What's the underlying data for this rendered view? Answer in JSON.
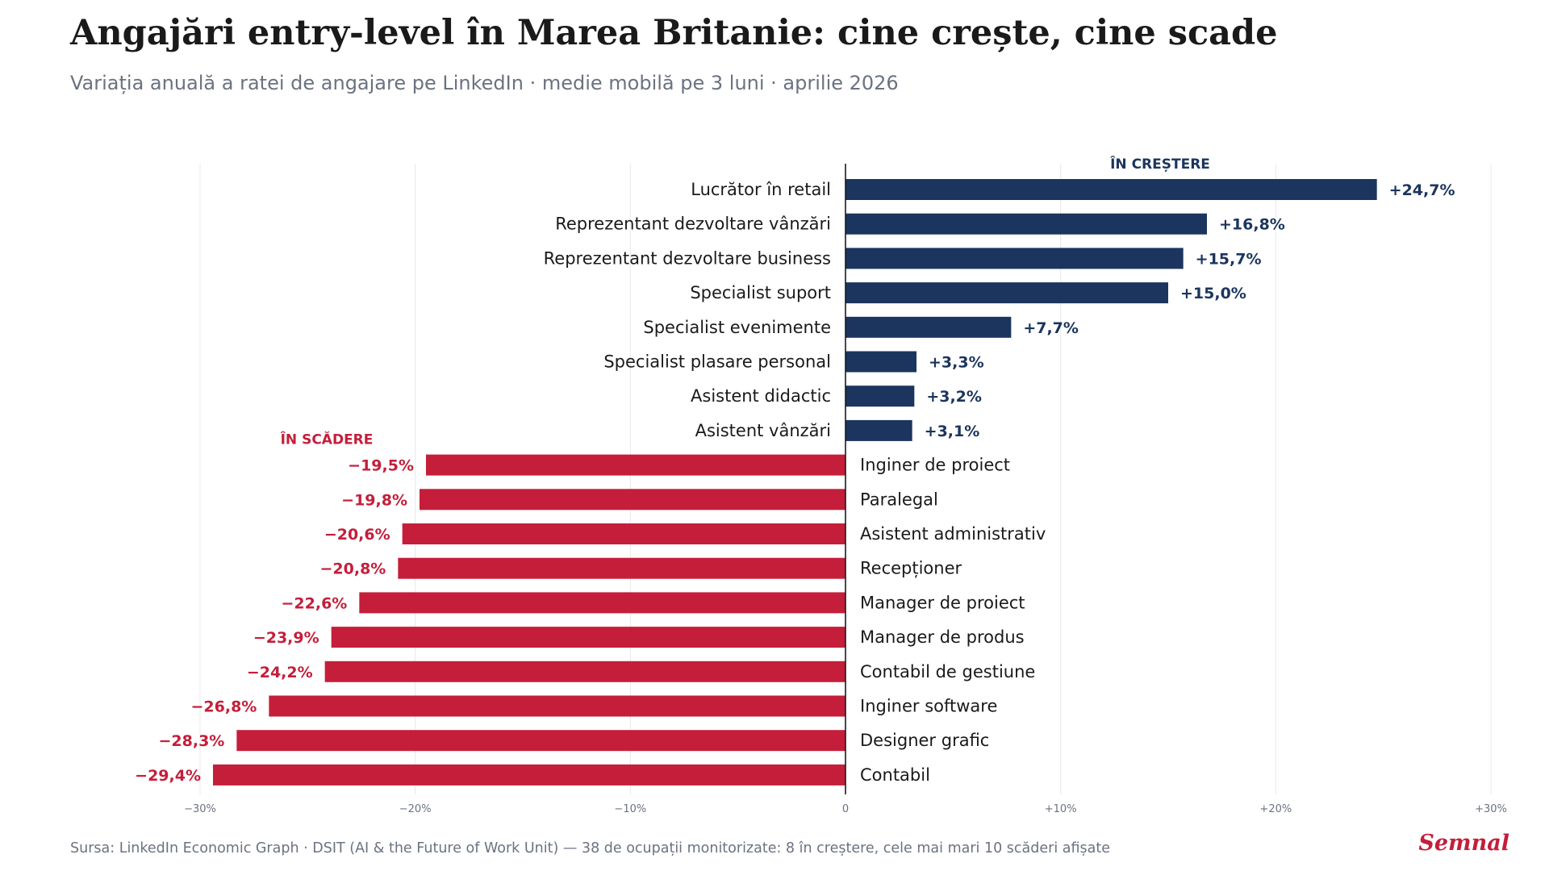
{
  "title": "Angajări entry-level în Marea Britanie: cine crește, cine scade",
  "subtitle": "Variația anuală a ratei de angajare pe LinkedIn · medie mobilă pe 3 luni · aprilie 2026",
  "source": "Sursa: LinkedIn Economic Graph · DSIT (AI & the Future of Work Unit) — 38 de ocupații monitorizate: 8 în creștere, cele mai mari 10 scăderi afișate",
  "brand": "Semnal",
  "colors": {
    "positive": "#1b355e",
    "negative": "#c41e3a"
  },
  "chart_data": {
    "type": "bar",
    "orientation": "horizontal",
    "group_labels": {
      "positive": "ÎN CREȘTERE",
      "negative": "ÎN SCĂDERE"
    },
    "categories": [
      "Lucrător în retail",
      "Reprezentant dezvoltare vânzări",
      "Reprezentant dezvoltare business",
      "Specialist suport",
      "Specialist evenimente",
      "Specialist plasare personal",
      "Asistent didactic",
      "Asistent vânzări",
      "Inginer de proiect",
      "Paralegal",
      "Asistent administrativ",
      "Recepționer",
      "Manager de proiect",
      "Manager de produs",
      "Contabil de gestiune",
      "Inginer software",
      "Designer grafic",
      "Contabil"
    ],
    "values": [
      24.7,
      16.8,
      15.7,
      15.0,
      7.7,
      3.3,
      3.2,
      3.1,
      -19.5,
      -19.8,
      -20.6,
      -20.8,
      -22.6,
      -23.9,
      -24.2,
      -26.8,
      -28.3,
      -29.4
    ],
    "value_labels": [
      "+24,7%",
      "+16,8%",
      "+15,7%",
      "+15,0%",
      "+7,7%",
      "+3,3%",
      "+3,2%",
      "+3,1%",
      "−19,5%",
      "−19,8%",
      "−20,6%",
      "−20,8%",
      "−22,6%",
      "−23,9%",
      "−24,2%",
      "−26,8%",
      "−28,3%",
      "−29,4%"
    ],
    "xlim": [
      -30,
      30
    ],
    "xticks": [
      -30,
      -20,
      -10,
      0,
      10,
      20,
      30
    ],
    "xtick_labels": [
      "−30%",
      "−20%",
      "−10%",
      "0",
      "+10%",
      "+20%",
      "+30%"
    ],
    "grid": "vertical"
  }
}
